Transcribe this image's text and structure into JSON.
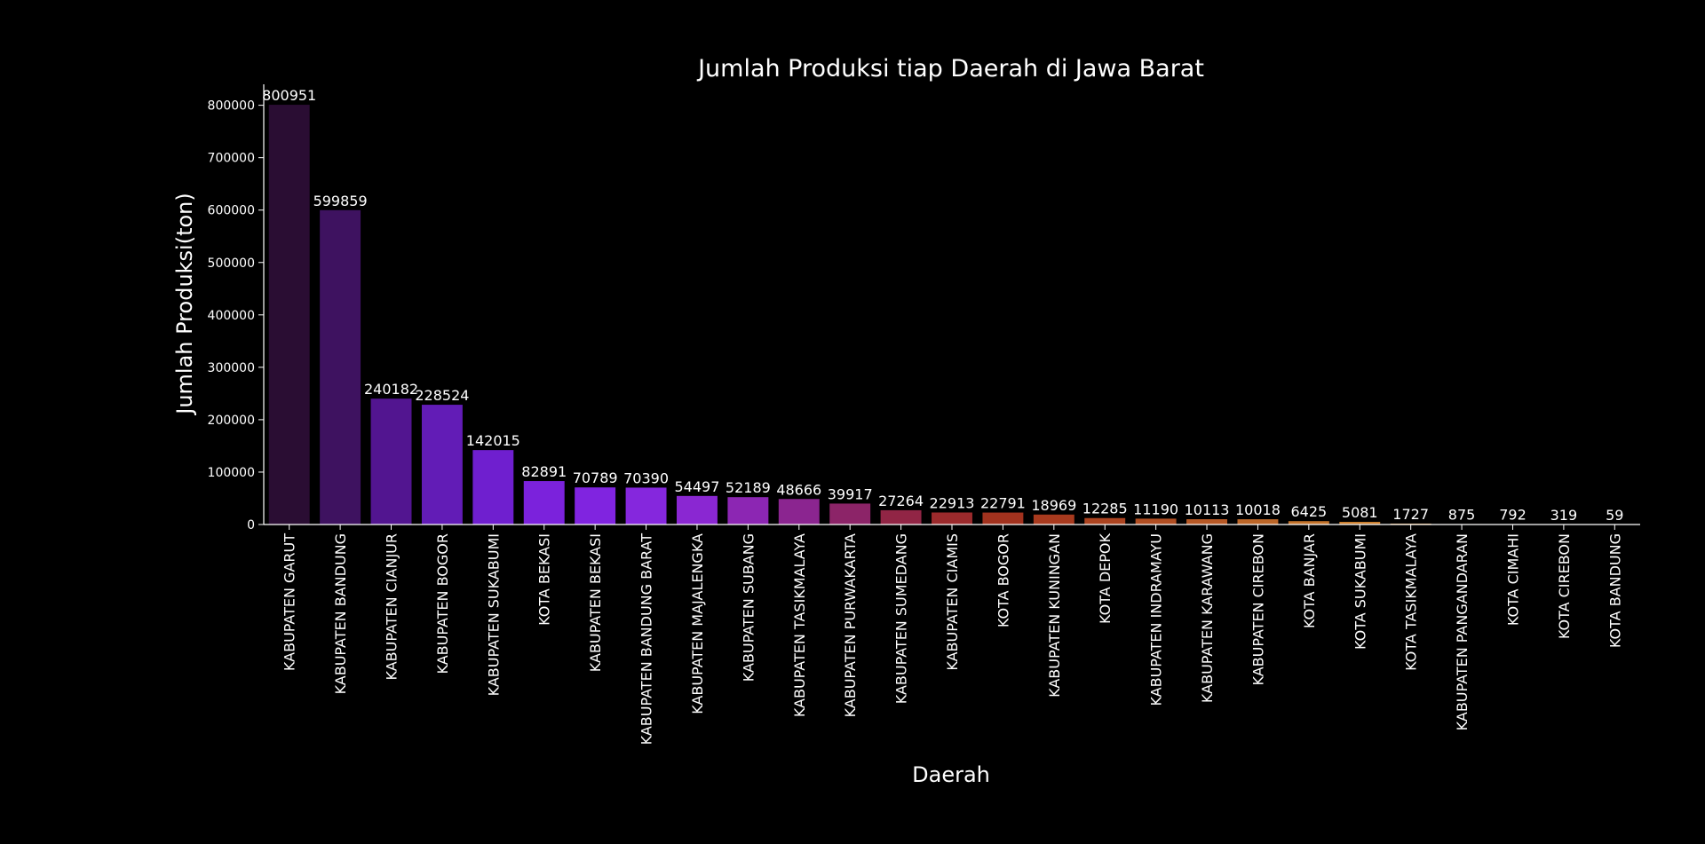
{
  "chart_data": {
    "type": "bar",
    "title": "Jumlah Produksi tiap Daerah di Jawa Barat",
    "xlabel": "Daerah",
    "ylabel": "Jumlah Produksi(ton)",
    "ylim": [
      0,
      840000
    ],
    "yticks": [
      0,
      100000,
      200000,
      300000,
      400000,
      500000,
      600000,
      700000,
      800000
    ],
    "grid": false,
    "categories": [
      "KABUPATEN GARUT",
      "KABUPATEN BANDUNG",
      "KABUPATEN CIANJUR",
      "KABUPATEN BOGOR",
      "KABUPATEN SUKABUMI",
      "KOTA BEKASI",
      "KABUPATEN BEKASI",
      "KABUPATEN BANDUNG BARAT",
      "KABUPATEN MAJALENGKA",
      "KABUPATEN SUBANG",
      "KABUPATEN TASIKMALAYA",
      "KABUPATEN PURWAKARTA",
      "KABUPATEN SUMEDANG",
      "KABUPATEN CIAMIS",
      "KOTA BOGOR",
      "KABUPATEN KUNINGAN",
      "KOTA DEPOK",
      "KABUPATEN INDRAMAYU",
      "KABUPATEN KARAWANG",
      "KABUPATEN CIREBON",
      "KOTA BANJAR",
      "KOTA SUKABUMI",
      "KOTA TASIKMALAYA",
      "KABUPATEN PANGANDARAN",
      "KOTA CIMAHI",
      "KOTA CIREBON",
      "KOTA BANDUNG"
    ],
    "values": [
      800951,
      599859,
      240182,
      228524,
      142015,
      82891,
      70789,
      70390,
      54497,
      52189,
      48666,
      39917,
      27264,
      22913,
      22791,
      18969,
      12285,
      11190,
      10113,
      10018,
      6425,
      5081,
      1727,
      875,
      792,
      319,
      59
    ],
    "colors": [
      "#2a0d33",
      "#3e1260",
      "#521590",
      "#621cb6",
      "#6f1fcf",
      "#7b22dc",
      "#8024e0",
      "#8527dd",
      "#8a27d2",
      "#8c26b3",
      "#8b2590",
      "#8c2468",
      "#912545",
      "#9b2a2c",
      "#a2321e",
      "#a83a1e",
      "#ac4420",
      "#b14e22",
      "#b65825",
      "#bc6628",
      "#c2722a",
      "#c97e2e",
      "#cf8a31",
      "#d59634",
      "#db9f38",
      "#dfa83c",
      "#e3b040"
    ]
  }
}
